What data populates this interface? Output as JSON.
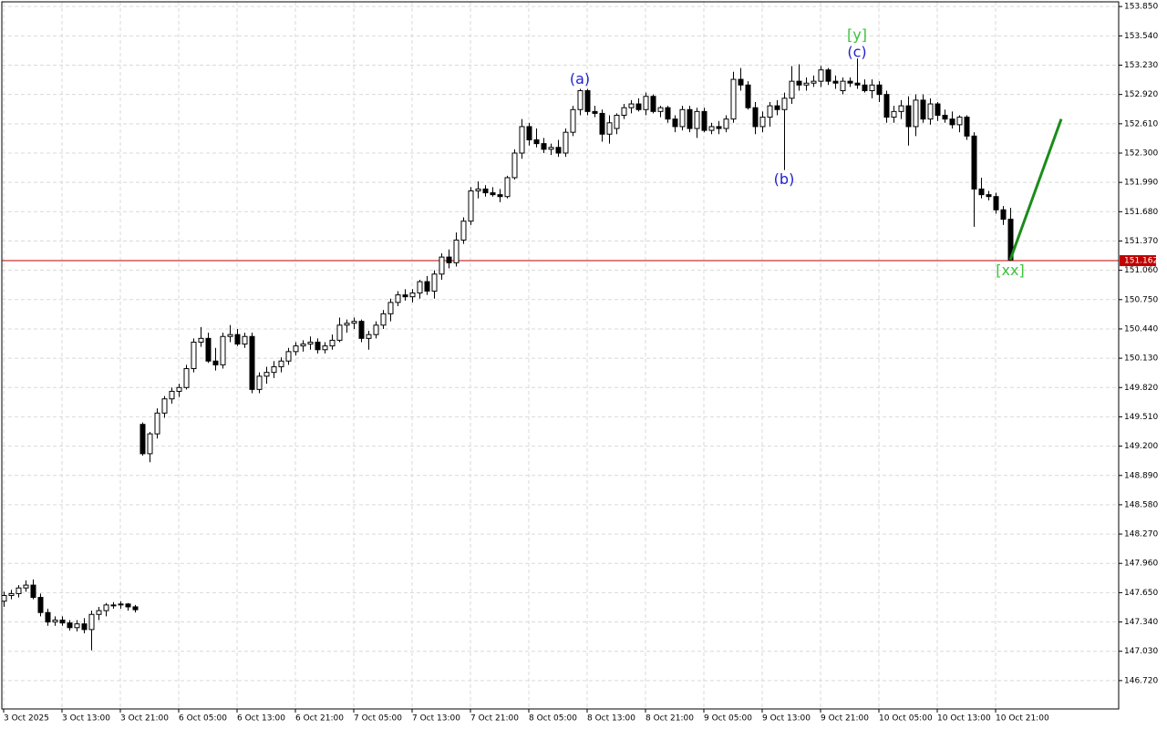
{
  "chart_data": {
    "type": "candlestick",
    "grid": true,
    "bull_color": "#ffffff",
    "bear_color": "#000000",
    "ylim": [
      146.42,
      153.9
    ],
    "yticks": [
      {
        "value": 153.85,
        "label": "153.850"
      },
      {
        "value": 153.54,
        "label": "153.540"
      },
      {
        "value": 153.23,
        "label": "153.230"
      },
      {
        "value": 152.92,
        "label": "152.920"
      },
      {
        "value": 152.61,
        "label": "152.610"
      },
      {
        "value": 152.3,
        "label": "152.300"
      },
      {
        "value": 151.99,
        "label": "151.990"
      },
      {
        "value": 151.68,
        "label": "151.680"
      },
      {
        "value": 151.37,
        "label": "151.370"
      },
      {
        "value": 151.06,
        "label": "151.060"
      },
      {
        "value": 150.75,
        "label": "150.750"
      },
      {
        "value": 150.44,
        "label": "150.440"
      },
      {
        "value": 150.13,
        "label": "150.130"
      },
      {
        "value": 149.82,
        "label": "149.820"
      },
      {
        "value": 149.51,
        "label": "149.510"
      },
      {
        "value": 149.2,
        "label": "149.200"
      },
      {
        "value": 148.89,
        "label": "148.890"
      },
      {
        "value": 148.58,
        "label": "148.580"
      },
      {
        "value": 148.27,
        "label": "148.270"
      },
      {
        "value": 147.96,
        "label": "147.960"
      },
      {
        "value": 147.65,
        "label": "147.650"
      },
      {
        "value": 147.34,
        "label": "147.340"
      },
      {
        "value": 147.03,
        "label": "147.030"
      },
      {
        "value": 146.72,
        "label": "146.720"
      }
    ],
    "xticks": [
      {
        "value": 0,
        "label": "3 Oct 2025"
      },
      {
        "value": 8,
        "label": "3 Oct 13:00"
      },
      {
        "value": 16,
        "label": "3 Oct 21:00"
      },
      {
        "value": 24,
        "label": "6 Oct 05:00"
      },
      {
        "value": 32,
        "label": "6 Oct 13:00"
      },
      {
        "value": 40,
        "label": "6 Oct 21:00"
      },
      {
        "value": 48,
        "label": "7 Oct 05:00"
      },
      {
        "value": 56,
        "label": "7 Oct 13:00"
      },
      {
        "value": 64,
        "label": "7 Oct 21:00"
      },
      {
        "value": 72,
        "label": "8 Oct 05:00"
      },
      {
        "value": 80,
        "label": "8 Oct 13:00"
      },
      {
        "value": 88,
        "label": "8 Oct 21:00"
      },
      {
        "value": 96,
        "label": "9 Oct 05:00"
      },
      {
        "value": 104,
        "label": "9 Oct 13:00"
      },
      {
        "value": 112,
        "label": "9 Oct 21:00"
      },
      {
        "value": 120,
        "label": "10 Oct 05:00"
      },
      {
        "value": 128,
        "label": "10 Oct 13:00"
      },
      {
        "value": 136,
        "label": "10 Oct 21:00"
      }
    ],
    "open": [
      147.56,
      147.62,
      147.64,
      147.7,
      147.73,
      147.6,
      147.44,
      147.34,
      147.36,
      147.33,
      147.28,
      147.32,
      147.26,
      147.42,
      147.46,
      147.52,
      147.52,
      147.53,
      147.5,
      149.43,
      149.12,
      149.33,
      149.55,
      149.7,
      149.78,
      149.82,
      150.02,
      150.3,
      150.34,
      150.1,
      150.06,
      150.36,
      150.38,
      150.28,
      150.36,
      149.8,
      149.94,
      149.98,
      150.04,
      150.1,
      150.2,
      150.26,
      150.28,
      150.3,
      150.22,
      150.26,
      150.32,
      150.48,
      150.5,
      150.52,
      150.34,
      150.38,
      150.48,
      150.6,
      150.72,
      150.8,
      150.78,
      150.82,
      150.94,
      150.84,
      151.02,
      151.2,
      151.14,
      151.38,
      151.58,
      151.9,
      151.92,
      151.88,
      151.86,
      151.84,
      152.04,
      152.3,
      152.58,
      152.44,
      152.4,
      152.34,
      152.36,
      152.3,
      152.52,
      152.76,
      152.96,
      152.74,
      152.72,
      152.5,
      152.56,
      152.7,
      152.78,
      152.82,
      152.76,
      152.9,
      152.74,
      152.78,
      152.66,
      152.58,
      152.76,
      152.56,
      152.74,
      152.54,
      152.58,
      152.56,
      152.66,
      153.08,
      153.02,
      152.78,
      152.58,
      152.68,
      152.8,
      152.76,
      152.88,
      153.06,
      153.02,
      153.04,
      153.06,
      153.18,
      153.06,
      152.96,
      153.06,
      153.04,
      153.02,
      152.96,
      153.02,
      152.92,
      152.68,
      152.74,
      152.8,
      152.58,
      152.86,
      152.66,
      152.82,
      152.7,
      152.66,
      152.6,
      152.68,
      152.48,
      151.92,
      151.86,
      151.84,
      151.7,
      151.6
    ],
    "high": [
      147.66,
      147.68,
      147.73,
      147.78,
      147.79,
      147.64,
      147.48,
      147.4,
      147.4,
      147.36,
      147.36,
      147.38,
      147.46,
      147.5,
      147.54,
      147.55,
      147.56,
      147.54,
      147.52,
      149.45,
      149.35,
      149.6,
      149.73,
      149.82,
      149.86,
      150.06,
      150.34,
      150.46,
      150.4,
      150.24,
      150.4,
      150.48,
      150.44,
      150.4,
      150.4,
      149.98,
      150.04,
      150.1,
      150.14,
      150.24,
      150.3,
      150.32,
      150.36,
      150.34,
      150.3,
      150.38,
      150.56,
      150.54,
      150.56,
      150.54,
      150.42,
      150.52,
      150.64,
      150.76,
      150.84,
      150.86,
      150.86,
      150.96,
      151.0,
      151.06,
      151.24,
      151.28,
      151.46,
      151.62,
      151.94,
      152.0,
      151.96,
      151.94,
      151.92,
      152.06,
      152.34,
      152.66,
      152.62,
      152.56,
      152.46,
      152.4,
      152.44,
      152.56,
      152.8,
      152.98,
      152.98,
      152.8,
      152.76,
      152.7,
      152.72,
      152.82,
      152.86,
      152.88,
      152.94,
      152.92,
      152.8,
      152.8,
      152.7,
      152.8,
      152.8,
      152.78,
      152.78,
      152.62,
      152.64,
      152.7,
      153.16,
      153.2,
      153.06,
      152.84,
      152.74,
      152.84,
      152.86,
      152.94,
      153.22,
      153.24,
      153.1,
      153.12,
      153.22,
      153.2,
      153.12,
      153.1,
      153.1,
      153.3,
      153.08,
      153.08,
      153.06,
      152.96,
      152.8,
      152.86,
      152.9,
      152.92,
      152.92,
      152.88,
      152.84,
      152.76,
      152.74,
      152.7,
      152.7,
      152.52,
      152.04,
      151.9,
      151.88,
      151.74,
      151.72
    ],
    "low": [
      147.5,
      147.58,
      147.6,
      147.66,
      147.58,
      147.4,
      147.3,
      147.3,
      147.3,
      147.25,
      147.24,
      147.22,
      147.04,
      147.36,
      147.4,
      147.48,
      147.48,
      147.46,
      147.44,
      149.1,
      149.03,
      149.28,
      149.5,
      149.65,
      149.72,
      149.8,
      149.98,
      150.25,
      150.08,
      150.0,
      150.02,
      150.3,
      150.26,
      150.24,
      149.76,
      149.76,
      149.86,
      149.92,
      149.98,
      150.06,
      150.16,
      150.2,
      150.22,
      150.18,
      150.18,
      150.22,
      150.3,
      150.4,
      150.44,
      150.3,
      150.22,
      150.34,
      150.44,
      150.52,
      150.68,
      150.74,
      150.72,
      150.76,
      150.8,
      150.76,
      150.96,
      151.08,
      151.1,
      151.34,
      151.54,
      151.82,
      151.84,
      151.84,
      151.78,
      151.82,
      152.02,
      152.24,
      152.38,
      152.36,
      152.3,
      152.28,
      152.26,
      152.26,
      152.48,
      152.7,
      152.7,
      152.68,
      152.42,
      152.4,
      152.5,
      152.66,
      152.72,
      152.74,
      152.7,
      152.72,
      152.68,
      152.62,
      152.52,
      152.54,
      152.52,
      152.46,
      152.52,
      152.5,
      152.5,
      152.52,
      152.62,
      152.96,
      152.76,
      152.5,
      152.52,
      152.58,
      152.7,
      152.12,
      152.82,
      152.96,
      152.96,
      153.0,
      153.0,
      153.02,
      152.98,
      152.92,
      153.0,
      152.98,
      152.94,
      152.88,
      152.84,
      152.62,
      152.62,
      152.66,
      152.38,
      152.48,
      152.62,
      152.6,
      152.64,
      152.62,
      152.56,
      152.52,
      152.44,
      151.52,
      151.82,
      151.8,
      151.66,
      151.54,
      151.16
    ],
    "close": [
      147.62,
      147.64,
      147.7,
      147.73,
      147.6,
      147.44,
      147.34,
      147.36,
      147.33,
      147.28,
      147.32,
      147.26,
      147.42,
      147.46,
      147.52,
      147.52,
      147.53,
      147.5,
      147.47,
      149.12,
      149.33,
      149.55,
      149.7,
      149.78,
      149.82,
      150.02,
      150.3,
      150.34,
      150.1,
      150.06,
      150.36,
      150.38,
      150.28,
      150.36,
      149.8,
      149.94,
      149.98,
      150.04,
      150.1,
      150.2,
      150.26,
      150.28,
      150.3,
      150.22,
      150.26,
      150.32,
      150.48,
      150.5,
      150.52,
      150.34,
      150.38,
      150.48,
      150.6,
      150.72,
      150.8,
      150.78,
      150.82,
      150.94,
      150.84,
      151.02,
      151.2,
      151.14,
      151.38,
      151.58,
      151.9,
      151.92,
      151.88,
      151.86,
      151.84,
      152.04,
      152.3,
      152.58,
      152.44,
      152.4,
      152.34,
      152.36,
      152.3,
      152.52,
      152.76,
      152.96,
      152.74,
      152.72,
      152.5,
      152.62,
      152.7,
      152.78,
      152.82,
      152.76,
      152.9,
      152.74,
      152.78,
      152.66,
      152.58,
      152.76,
      152.56,
      152.74,
      152.54,
      152.58,
      152.56,
      152.66,
      153.08,
      153.02,
      152.78,
      152.58,
      152.68,
      152.8,
      152.76,
      152.88,
      153.06,
      153.02,
      153.04,
      153.06,
      153.18,
      153.06,
      153.04,
      153.06,
      153.04,
      153.02,
      152.96,
      153.02,
      152.92,
      152.68,
      152.74,
      152.8,
      152.58,
      152.86,
      152.66,
      152.82,
      152.7,
      152.66,
      152.6,
      152.68,
      152.48,
      151.92,
      151.86,
      151.84,
      151.7,
      151.6,
      151.17
    ],
    "current_price": 151.162,
    "current_price_color": "#c00000",
    "projection": {
      "color": "#1a8c1a",
      "values": [
        151.17,
        152.66
      ]
    },
    "annotations": [
      {
        "text": "(a)",
        "color": "#2020d0"
      },
      {
        "text": "(b)",
        "color": "#2020d0"
      },
      {
        "text": "(c)",
        "color": "#2020d0"
      },
      {
        "text": "[y]",
        "color": "#3cc43c"
      },
      {
        "text": "[xx]",
        "color": "#3cc43c"
      }
    ]
  }
}
